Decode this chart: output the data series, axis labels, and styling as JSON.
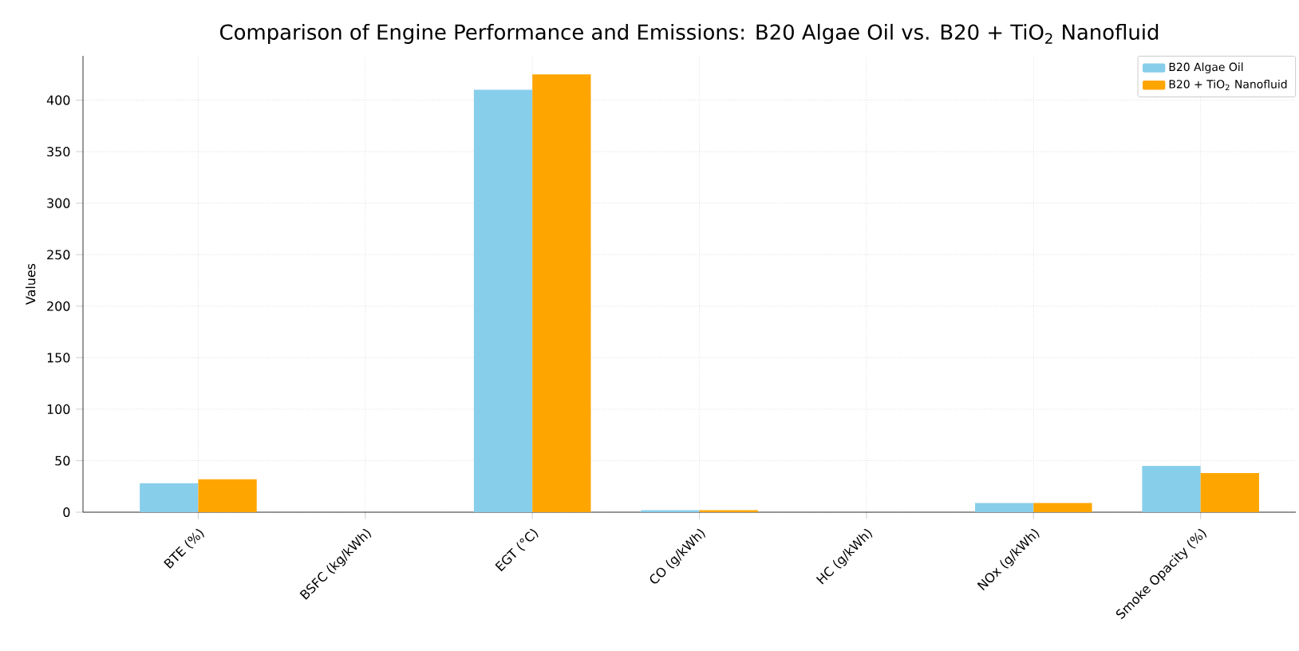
{
  "chart_data": {
    "type": "bar",
    "title": "Comparison of Engine Performance and Emissions: B20 Algae Oil vs. B20 + TiO$_{2}$ Nanofluid",
    "ylabel": "Values",
    "categories": [
      "BTE (%)",
      "BSFC (kg/kWh)",
      "EGT (°C)",
      "CO (g/kWh)",
      "HC (g/kWh)",
      "NOx (g/kWh)",
      "Smoke Opacity (%)"
    ],
    "series": [
      {
        "name": "B20 Algae Oil",
        "color": "#87ceeb",
        "values": [
          28,
          null,
          410,
          2,
          null,
          9,
          45
        ]
      },
      {
        "name": "B20 + TiO$_{2}$ Nanofluid",
        "color": "#ffa500",
        "values": [
          32,
          null,
          425,
          2,
          null,
          9,
          38
        ]
      }
    ],
    "ylim": [
      0,
      443
    ],
    "yticks": [
      0,
      50,
      100,
      150,
      200,
      250,
      300,
      350,
      400
    ],
    "grid": true,
    "legend": "top right"
  }
}
